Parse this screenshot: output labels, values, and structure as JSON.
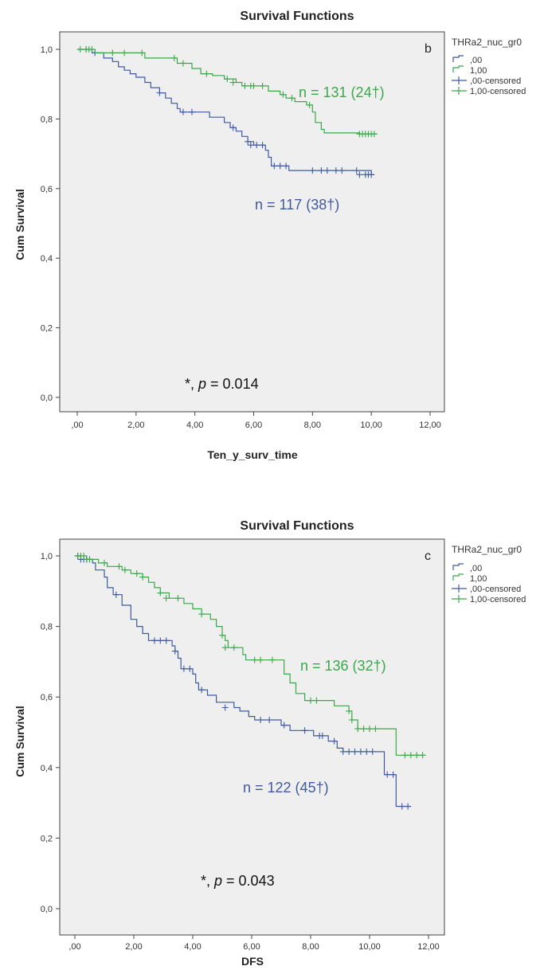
{
  "colors": {
    "group0": "#3f5a9e",
    "group1": "#3aa84a",
    "plot_bg": "#efefef",
    "axis": "#444444"
  },
  "chart_data": [
    {
      "type": "line",
      "title": "Survival Functions",
      "panel_letter": "b",
      "xlabel": "Ten_y_surv_time",
      "ylabel": "Cum Survival",
      "xlim": [
        0,
        12
      ],
      "ylim": [
        0,
        1
      ],
      "x_ticks": [
        ",00",
        "2,00",
        "4,00",
        "6,00",
        "8,00",
        "10,00",
        "12,00"
      ],
      "y_ticks": [
        "0,0",
        "0,2",
        "0,4",
        "0,6",
        "0,8",
        "1,0"
      ],
      "legend": {
        "title": "THRa2_nuc_gr0",
        "entries": [
          ",00",
          "1,00",
          ",00-censored",
          "1,00-censored"
        ],
        "position": "right-outside"
      },
      "p_value_text": "*, p = 0.014",
      "series": [
        {
          "name": ",00",
          "annotation": "n = 117 (38†)",
          "step": [
            [
              0,
              1.0
            ],
            [
              0.5,
              0.99
            ],
            [
              0.9,
              0.975
            ],
            [
              1.2,
              0.965
            ],
            [
              1.4,
              0.95
            ],
            [
              1.6,
              0.94
            ],
            [
              1.8,
              0.93
            ],
            [
              2.0,
              0.92
            ],
            [
              2.3,
              0.905
            ],
            [
              2.5,
              0.89
            ],
            [
              2.8,
              0.875
            ],
            [
              3.0,
              0.86
            ],
            [
              3.2,
              0.845
            ],
            [
              3.4,
              0.83
            ],
            [
              3.5,
              0.82
            ],
            [
              4.5,
              0.805
            ],
            [
              5.0,
              0.79
            ],
            [
              5.2,
              0.775
            ],
            [
              5.4,
              0.765
            ],
            [
              5.6,
              0.75
            ],
            [
              5.8,
              0.735
            ],
            [
              6.0,
              0.725
            ],
            [
              6.4,
              0.71
            ],
            [
              6.5,
              0.69
            ],
            [
              6.6,
              0.665
            ],
            [
              7.2,
              0.652
            ],
            [
              10.0,
              0.64
            ],
            [
              10.1,
              0.64
            ]
          ],
          "censored": [
            [
              0.3,
              1.0
            ],
            [
              0.6,
              0.99
            ],
            [
              2.8,
              0.875
            ],
            [
              3.6,
              0.82
            ],
            [
              3.9,
              0.82
            ],
            [
              5.3,
              0.775
            ],
            [
              5.8,
              0.735
            ],
            [
              5.9,
              0.725
            ],
            [
              6.1,
              0.725
            ],
            [
              6.3,
              0.725
            ],
            [
              6.7,
              0.665
            ],
            [
              6.9,
              0.665
            ],
            [
              7.1,
              0.665
            ],
            [
              8.0,
              0.652
            ],
            [
              8.3,
              0.652
            ],
            [
              8.5,
              0.652
            ],
            [
              8.8,
              0.652
            ],
            [
              9.0,
              0.652
            ],
            [
              9.5,
              0.652
            ],
            [
              9.6,
              0.64
            ],
            [
              9.8,
              0.64
            ],
            [
              9.9,
              0.64
            ],
            [
              10.0,
              0.64
            ]
          ]
        },
        {
          "name": "1,00",
          "annotation": "n = 131 (24†)",
          "step": [
            [
              0,
              1.0
            ],
            [
              0.6,
              0.99
            ],
            [
              1.1,
              0.99
            ],
            [
              2.3,
              0.975
            ],
            [
              2.9,
              0.975
            ],
            [
              3.4,
              0.96
            ],
            [
              3.9,
              0.945
            ],
            [
              4.2,
              0.93
            ],
            [
              4.6,
              0.925
            ],
            [
              5.0,
              0.915
            ],
            [
              5.4,
              0.905
            ],
            [
              5.6,
              0.895
            ],
            [
              6.5,
              0.88
            ],
            [
              6.9,
              0.87
            ],
            [
              7.1,
              0.86
            ],
            [
              7.4,
              0.85
            ],
            [
              7.8,
              0.84
            ],
            [
              8.0,
              0.82
            ],
            [
              8.1,
              0.79
            ],
            [
              8.3,
              0.77
            ],
            [
              8.4,
              0.76
            ],
            [
              9.6,
              0.757
            ],
            [
              10.2,
              0.757
            ]
          ],
          "censored": [
            [
              0.1,
              1.0
            ],
            [
              0.3,
              1.0
            ],
            [
              0.4,
              1.0
            ],
            [
              0.5,
              1.0
            ],
            [
              1.2,
              0.99
            ],
            [
              1.6,
              0.99
            ],
            [
              2.2,
              0.99
            ],
            [
              3.3,
              0.975
            ],
            [
              3.6,
              0.96
            ],
            [
              4.4,
              0.93
            ],
            [
              5.1,
              0.915
            ],
            [
              5.3,
              0.905
            ],
            [
              5.7,
              0.895
            ],
            [
              5.9,
              0.895
            ],
            [
              6.0,
              0.895
            ],
            [
              6.3,
              0.895
            ],
            [
              7.0,
              0.87
            ],
            [
              7.3,
              0.86
            ],
            [
              7.9,
              0.84
            ],
            [
              9.6,
              0.757
            ],
            [
              9.7,
              0.757
            ],
            [
              9.8,
              0.757
            ],
            [
              9.9,
              0.757
            ],
            [
              10.0,
              0.757
            ],
            [
              10.1,
              0.757
            ]
          ]
        }
      ]
    },
    {
      "type": "line",
      "title": "Survival Functions",
      "panel_letter": "c",
      "xlabel": "DFS",
      "ylabel": "Cum Survival",
      "xlim": [
        0,
        12
      ],
      "ylim": [
        0,
        1
      ],
      "x_ticks": [
        ",00",
        "2,00",
        "4,00",
        "6,00",
        "8,00",
        "10,00",
        "12,00"
      ],
      "y_ticks": [
        "0,0",
        "0,2",
        "0,4",
        "0,6",
        "0,8",
        "1,0"
      ],
      "legend": {
        "title": "THRa2_nuc_gr0",
        "entries": [
          ",00",
          "1,00",
          ",00-censored",
          "1,00-censored"
        ],
        "position": "right-outside"
      },
      "p_value_text": "*, p = 0.043",
      "series": [
        {
          "name": ",00",
          "annotation": "n = 122 (45†)",
          "step": [
            [
              0,
              1.0
            ],
            [
              0.2,
              0.99
            ],
            [
              0.6,
              0.98
            ],
            [
              0.7,
              0.96
            ],
            [
              1.0,
              0.94
            ],
            [
              1.1,
              0.91
            ],
            [
              1.3,
              0.89
            ],
            [
              1.6,
              0.86
            ],
            [
              1.9,
              0.82
            ],
            [
              2.1,
              0.8
            ],
            [
              2.3,
              0.78
            ],
            [
              2.5,
              0.76
            ],
            [
              3.3,
              0.745
            ],
            [
              3.4,
              0.73
            ],
            [
              3.5,
              0.71
            ],
            [
              3.6,
              0.68
            ],
            [
              4.0,
              0.665
            ],
            [
              4.1,
              0.64
            ],
            [
              4.2,
              0.62
            ],
            [
              4.5,
              0.605
            ],
            [
              4.8,
              0.585
            ],
            [
              5.4,
              0.57
            ],
            [
              5.6,
              0.56
            ],
            [
              5.9,
              0.545
            ],
            [
              6.1,
              0.535
            ],
            [
              7.0,
              0.52
            ],
            [
              7.3,
              0.505
            ],
            [
              8.1,
              0.49
            ],
            [
              8.6,
              0.475
            ],
            [
              8.9,
              0.455
            ],
            [
              9.1,
              0.445
            ],
            [
              10.5,
              0.38
            ],
            [
              10.9,
              0.29
            ],
            [
              11.4,
              0.29
            ]
          ],
          "censored": [
            [
              0.1,
              1.0
            ],
            [
              0.2,
              0.99
            ],
            [
              0.3,
              0.99
            ],
            [
              0.4,
              0.99
            ],
            [
              0.5,
              0.99
            ],
            [
              1.4,
              0.89
            ],
            [
              2.7,
              0.76
            ],
            [
              2.9,
              0.76
            ],
            [
              3.1,
              0.76
            ],
            [
              3.4,
              0.73
            ],
            [
              3.7,
              0.68
            ],
            [
              3.9,
              0.68
            ],
            [
              4.3,
              0.62
            ],
            [
              5.1,
              0.57
            ],
            [
              6.3,
              0.535
            ],
            [
              6.6,
              0.535
            ],
            [
              7.1,
              0.52
            ],
            [
              7.8,
              0.505
            ],
            [
              8.3,
              0.49
            ],
            [
              8.4,
              0.49
            ],
            [
              8.8,
              0.475
            ],
            [
              9.1,
              0.445
            ],
            [
              9.3,
              0.445
            ],
            [
              9.5,
              0.445
            ],
            [
              9.7,
              0.445
            ],
            [
              9.9,
              0.445
            ],
            [
              10.1,
              0.445
            ],
            [
              10.6,
              0.38
            ],
            [
              10.8,
              0.38
            ],
            [
              11.1,
              0.29
            ],
            [
              11.3,
              0.29
            ]
          ]
        },
        {
          "name": "1,00",
          "annotation": "n = 136 (32†)",
          "step": [
            [
              0,
              1.0
            ],
            [
              0.4,
              0.99
            ],
            [
              0.8,
              0.98
            ],
            [
              1.1,
              0.97
            ],
            [
              1.6,
              0.96
            ],
            [
              1.9,
              0.95
            ],
            [
              2.3,
              0.94
            ],
            [
              2.5,
              0.925
            ],
            [
              2.7,
              0.91
            ],
            [
              2.9,
              0.895
            ],
            [
              3.2,
              0.88
            ],
            [
              3.7,
              0.865
            ],
            [
              4.0,
              0.85
            ],
            [
              4.3,
              0.835
            ],
            [
              4.6,
              0.82
            ],
            [
              4.8,
              0.8
            ],
            [
              5.0,
              0.775
            ],
            [
              5.1,
              0.76
            ],
            [
              5.2,
              0.74
            ],
            [
              5.7,
              0.72
            ],
            [
              5.8,
              0.705
            ],
            [
              6.9,
              0.705
            ],
            [
              7.1,
              0.665
            ],
            [
              7.3,
              0.64
            ],
            [
              7.5,
              0.61
            ],
            [
              7.8,
              0.59
            ],
            [
              8.8,
              0.575
            ],
            [
              9.3,
              0.56
            ],
            [
              9.4,
              0.535
            ],
            [
              9.6,
              0.51
            ],
            [
              10.9,
              0.435
            ],
            [
              11.9,
              0.435
            ]
          ],
          "censored": [
            [
              0.1,
              1.0
            ],
            [
              0.2,
              1.0
            ],
            [
              0.3,
              1.0
            ],
            [
              0.4,
              0.99
            ],
            [
              0.5,
              0.99
            ],
            [
              1.0,
              0.98
            ],
            [
              1.5,
              0.97
            ],
            [
              1.7,
              0.96
            ],
            [
              2.1,
              0.95
            ],
            [
              2.3,
              0.94
            ],
            [
              2.9,
              0.895
            ],
            [
              3.1,
              0.88
            ],
            [
              3.5,
              0.88
            ],
            [
              4.3,
              0.835
            ],
            [
              5.0,
              0.775
            ],
            [
              5.1,
              0.74
            ],
            [
              5.4,
              0.74
            ],
            [
              6.1,
              0.705
            ],
            [
              6.3,
              0.705
            ],
            [
              6.7,
              0.705
            ],
            [
              8.0,
              0.59
            ],
            [
              8.2,
              0.59
            ],
            [
              9.3,
              0.56
            ],
            [
              9.4,
              0.535
            ],
            [
              9.6,
              0.51
            ],
            [
              9.8,
              0.51
            ],
            [
              10.0,
              0.51
            ],
            [
              10.2,
              0.51
            ],
            [
              11.2,
              0.435
            ],
            [
              11.4,
              0.435
            ],
            [
              11.6,
              0.435
            ],
            [
              11.8,
              0.435
            ]
          ]
        }
      ]
    }
  ]
}
